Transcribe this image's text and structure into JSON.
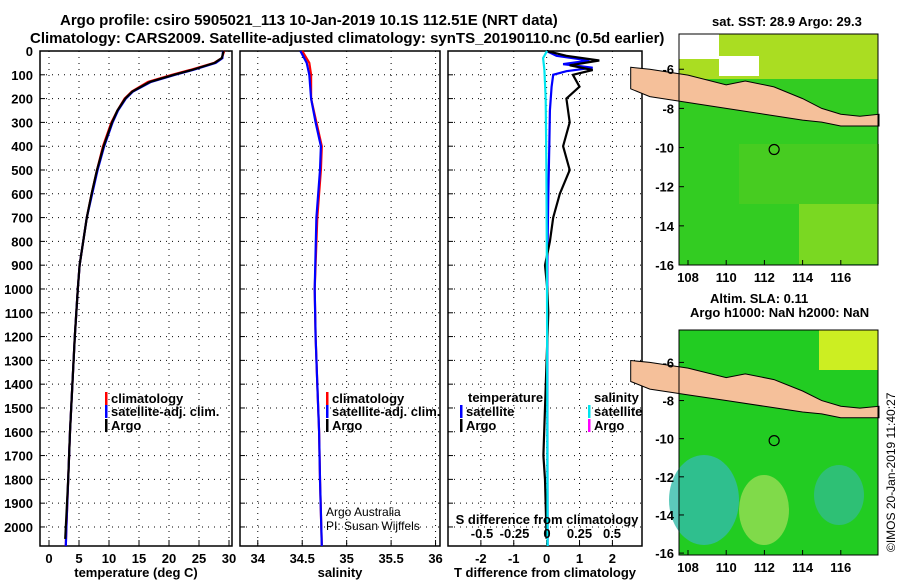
{
  "title_line1": "Argo profile: csiro 5905021_113 10-Jan-2019 10.1S 112.51E (NRT data)",
  "title_line2": "Climatology: CARS2009. Satellite-adjusted climatology: synTS_20190110.nc (0.5d earlier)",
  "credit": "©IMOS 20-Jan-2019 11:40:27",
  "attribution_1": "Argo Australia",
  "attribution_2": "PI: Susan Wijffels",
  "colors": {
    "climatology": "#ff0000",
    "satellite": "#0000ff",
    "argo": "#000000",
    "sal_satellite": "#00e5ee",
    "sal_argo": "#ff00ff",
    "land": "#f5c09a"
  },
  "chart_data": [
    {
      "type": "line",
      "xlabel": "temperature (deg C)",
      "xlim": [
        -1.5,
        30.5
      ],
      "xticks": [
        0,
        5,
        10,
        15,
        20,
        25,
        30
      ],
      "ylim": [
        2080,
        0
      ],
      "yticks": [
        0,
        100,
        200,
        300,
        400,
        500,
        600,
        700,
        800,
        900,
        1000,
        1100,
        1200,
        1300,
        1400,
        1500,
        1600,
        1700,
        1800,
        1900,
        2000
      ],
      "legend": [
        "climatology",
        "satellite-adj. clim.",
        "Argo"
      ],
      "series": [
        {
          "name": "climatology",
          "color": "#ff0000",
          "points": [
            [
              0,
              29.2
            ],
            [
              30,
              28.8
            ],
            [
              50,
              27.5
            ],
            [
              80,
              23.5
            ],
            [
              100,
              20.5
            ],
            [
              130,
              16.5
            ],
            [
              170,
              13.8
            ],
            [
              200,
              12.6
            ],
            [
              250,
              11.4
            ],
            [
              300,
              10.4
            ],
            [
              400,
              9.0
            ],
            [
              500,
              8.0
            ],
            [
              600,
              7.1
            ],
            [
              700,
              6.3
            ],
            [
              800,
              5.7
            ],
            [
              900,
              5.1
            ],
            [
              1000,
              4.8
            ],
            [
              1200,
              4.3
            ],
            [
              1400,
              3.9
            ],
            [
              1600,
              3.5
            ],
            [
              1800,
              3.2
            ],
            [
              2000,
              2.9
            ],
            [
              2080,
              2.8
            ]
          ]
        },
        {
          "name": "satellite-adj. clim.",
          "color": "#0000ff",
          "points": [
            [
              0,
              29.0
            ],
            [
              30,
              28.9
            ],
            [
              50,
              27.8
            ],
            [
              80,
              24
            ],
            [
              100,
              21
            ],
            [
              130,
              17
            ],
            [
              170,
              14
            ],
            [
              200,
              12.8
            ],
            [
              250,
              11.5
            ],
            [
              300,
              10.6
            ],
            [
              400,
              9.2
            ],
            [
              500,
              8.1
            ],
            [
              600,
              7.2
            ],
            [
              700,
              6.3
            ],
            [
              800,
              5.7
            ],
            [
              900,
              5.1
            ],
            [
              1000,
              4.8
            ],
            [
              1200,
              4.3
            ],
            [
              1400,
              3.9
            ],
            [
              1600,
              3.5
            ],
            [
              1800,
              3.2
            ],
            [
              2000,
              2.9
            ],
            [
              2080,
              2.8
            ]
          ]
        },
        {
          "name": "Argo",
          "color": "#000000",
          "points": [
            [
              0,
              29.1
            ],
            [
              30,
              28.8
            ],
            [
              50,
              27.6
            ],
            [
              80,
              23.8
            ],
            [
              100,
              20.8
            ],
            [
              130,
              16.8
            ],
            [
              170,
              13.9
            ],
            [
              200,
              12.7
            ],
            [
              250,
              11.4
            ],
            [
              300,
              10.5
            ],
            [
              400,
              9.1
            ],
            [
              500,
              8.0
            ],
            [
              600,
              7.1
            ],
            [
              700,
              6.3
            ],
            [
              800,
              5.7
            ],
            [
              900,
              5.1
            ],
            [
              1000,
              4.8
            ],
            [
              1200,
              4.3
            ],
            [
              1400,
              3.9
            ],
            [
              1600,
              3.5
            ],
            [
              1800,
              3.2
            ],
            [
              2000,
              2.8
            ],
            [
              2050,
              2.7
            ]
          ]
        }
      ]
    },
    {
      "type": "line",
      "xlabel": "salinity",
      "xlim": [
        33.8,
        36.05
      ],
      "xticks": [
        34,
        34.5,
        35,
        35.5,
        36
      ],
      "xtick_labels": [
        "34",
        "34.5",
        "35",
        "35.5",
        "36"
      ],
      "ylim": [
        2080,
        0
      ],
      "legend": [
        "climatology",
        "satellite-adj. clim.",
        "Argo"
      ],
      "series": [
        {
          "name": "climatology",
          "color": "#ff0000",
          "points": [
            [
              0,
              34.5
            ],
            [
              50,
              34.58
            ],
            [
              100,
              34.6
            ],
            [
              200,
              34.6
            ],
            [
              300,
              34.66
            ],
            [
              400,
              34.72
            ],
            [
              500,
              34.71
            ],
            [
              700,
              34.67
            ],
            [
              1000,
              34.64
            ],
            [
              1200,
              34.65
            ],
            [
              1400,
              34.67
            ],
            [
              1600,
              34.69
            ],
            [
              1800,
              34.7
            ],
            [
              2080,
              34.72
            ]
          ]
        },
        {
          "name": "satellite-adj. clim.",
          "color": "#0000ff",
          "points": [
            [
              0,
              34.48
            ],
            [
              50,
              34.55
            ],
            [
              100,
              34.58
            ],
            [
              200,
              34.6
            ],
            [
              300,
              34.65
            ],
            [
              400,
              34.71
            ],
            [
              500,
              34.7
            ],
            [
              700,
              34.66
            ],
            [
              1000,
              34.64
            ],
            [
              1200,
              34.65
            ],
            [
              1400,
              34.67
            ],
            [
              1600,
              34.69
            ],
            [
              1800,
              34.7
            ],
            [
              2080,
              34.72
            ]
          ]
        }
      ]
    },
    {
      "type": "line",
      "xlabel": "T difference from climatology",
      "xlim": [
        -3,
        2.9
      ],
      "xticks": [
        -2,
        -1,
        0,
        1,
        2
      ],
      "xlabel2": "S difference from climatology",
      "x2ticks": [
        -0.5,
        -0.25,
        0,
        0.25,
        0.5
      ],
      "x2tick_labels": [
        "-0.5",
        "-0.25",
        "0",
        "0.25",
        "0.5"
      ],
      "ylim": [
        2080,
        0
      ],
      "legend_title_t": "temperature",
      "legend_title_s": "salinity",
      "legend_t": [
        "satellite",
        "Argo"
      ],
      "legend_s": [
        "satellite",
        "Argo"
      ],
      "series": [
        {
          "name": "T satellite",
          "color": "#0000ff",
          "points": [
            [
              0,
              0
            ],
            [
              20,
              0.3
            ],
            [
              40,
              1.3
            ],
            [
              55,
              0.5
            ],
            [
              70,
              1.4
            ],
            [
              85,
              0.6
            ],
            [
              100,
              0.2
            ],
            [
              150,
              0.15
            ],
            [
              250,
              0.1
            ],
            [
              400,
              0.08
            ],
            [
              600,
              0.05
            ],
            [
              900,
              0.02
            ],
            [
              1200,
              0.02
            ],
            [
              2080,
              0.03
            ]
          ]
        },
        {
          "name": "T Argo",
          "color": "#000000",
          "points": [
            [
              0,
              0
            ],
            [
              20,
              0.6
            ],
            [
              40,
              1.6
            ],
            [
              60,
              0.7
            ],
            [
              80,
              1.4
            ],
            [
              100,
              0.8
            ],
            [
              150,
              1.0
            ],
            [
              200,
              0.6
            ],
            [
              300,
              0.7
            ],
            [
              400,
              0.5
            ],
            [
              500,
              0.7
            ],
            [
              600,
              0.4
            ],
            [
              700,
              0.2
            ],
            [
              800,
              0.1
            ],
            [
              900,
              -0.05
            ],
            [
              1000,
              0.02
            ],
            [
              1100,
              0.05
            ],
            [
              1300,
              0
            ],
            [
              1500,
              -0.05
            ],
            [
              1700,
              -0.1
            ],
            [
              1800,
              -0.05
            ],
            [
              2050,
              0
            ]
          ]
        },
        {
          "name": "S satellite",
          "color": "#00e5ee",
          "points": [
            [
              0,
              0
            ],
            [
              30,
              -0.03
            ],
            [
              80,
              -0.02
            ],
            [
              200,
              -0.01
            ],
            [
              500,
              -0.005
            ],
            [
              1000,
              0
            ],
            [
              2080,
              0.005
            ]
          ]
        }
      ]
    }
  ],
  "map_sst": {
    "title": "sat. SST: 28.9 Argo: 29.3",
    "lon_ticks": [
      "108",
      "110",
      "112",
      "114",
      "116"
    ],
    "lat_ticks": [
      "-6",
      "-8",
      "-10",
      "-12",
      "-14",
      "-16"
    ]
  },
  "map_sla": {
    "title1": "Altim. SLA: 0.11",
    "title2": "Argo h1000: NaN h2000: NaN",
    "lon_ticks": [
      "108",
      "110",
      "112",
      "114",
      "116"
    ],
    "lat_ticks": [
      "-6",
      "-8",
      "-10",
      "-12",
      "-14",
      "-16"
    ]
  }
}
